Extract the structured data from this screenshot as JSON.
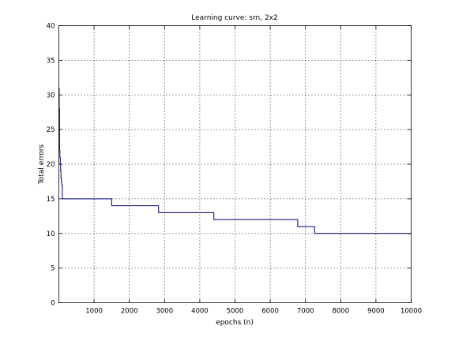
{
  "chart_data": {
    "type": "line",
    "title": "Learning curve: srn, 2x2",
    "xlabel": "epochs (n)",
    "ylabel": "Total errors",
    "xlim": [
      0,
      10000
    ],
    "ylim": [
      0,
      40
    ],
    "grid": true,
    "x_ticks": [
      1000,
      2000,
      3000,
      4000,
      5000,
      6000,
      7000,
      8000,
      9000,
      10000
    ],
    "y_ticks": [
      0,
      5,
      10,
      15,
      20,
      25,
      30,
      35,
      40
    ],
    "series": [
      {
        "color": "#00007f",
        "step": true,
        "x": [
          0,
          10,
          20,
          30,
          40,
          50,
          60,
          70,
          80,
          100,
          1500,
          2830,
          4400,
          6780,
          7260,
          10000
        ],
        "y": [
          31,
          28,
          22,
          21,
          20,
          19,
          18,
          17.5,
          17,
          15,
          14,
          13,
          12,
          11,
          10,
          10
        ]
      }
    ]
  }
}
